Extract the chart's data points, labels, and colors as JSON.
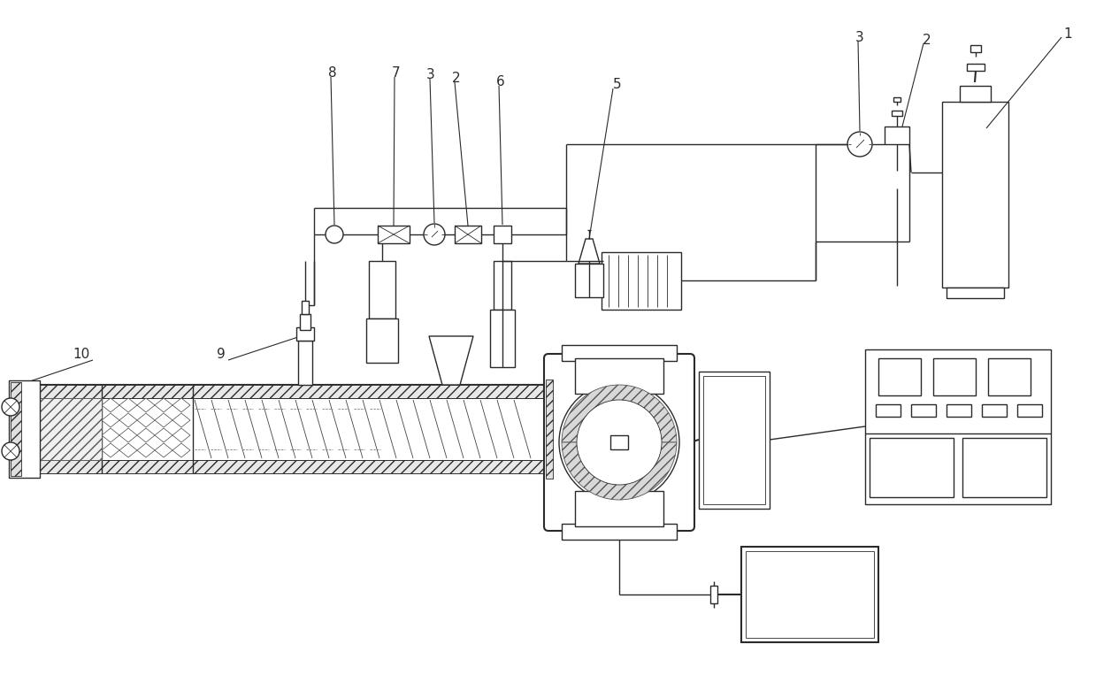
{
  "bg_color": "#ffffff",
  "line_color": "#2a2a2a",
  "lw_main": 1.0,
  "lw_thin": 0.6,
  "lw_thick": 1.5
}
